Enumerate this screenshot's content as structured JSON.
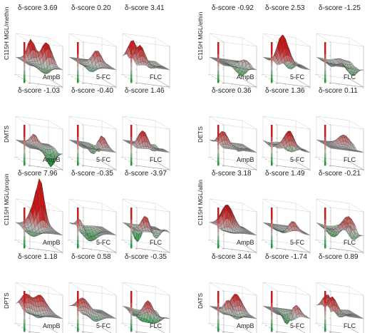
{
  "chart_data": [
    {
      "type": "surface",
      "row_label": "C115H MGL/methin",
      "panels": [
        {
          "drug": "AmpB",
          "delta_label": "δ-score",
          "delta_score": "3.69"
        },
        {
          "drug": "5-FC",
          "delta_label": "δ-score",
          "delta_score": "0.20"
        },
        {
          "drug": "FLC",
          "delta_label": "δ-score",
          "delta_score": "3.41"
        }
      ]
    },
    {
      "type": "surface",
      "row_label": "C115H MGL/ethin",
      "panels": [
        {
          "drug": "AmpB",
          "delta_label": "δ-score",
          "delta_score": "-0.92"
        },
        {
          "drug": "5-FC",
          "delta_label": "δ-score",
          "delta_score": "2.53"
        },
        {
          "drug": "FLC",
          "delta_label": "δ-score",
          "delta_score": "-1.25"
        }
      ]
    },
    {
      "type": "surface",
      "row_label": "DMTS",
      "panels": [
        {
          "drug": "AmpB",
          "delta_label": "δ-score",
          "delta_score": "-1.03"
        },
        {
          "drug": "5-FC",
          "delta_label": "δ-score",
          "delta_score": "-0.40"
        },
        {
          "drug": "FLC",
          "delta_label": "δ-score",
          "delta_score": "1.46"
        }
      ]
    },
    {
      "type": "surface",
      "row_label": "DETS",
      "panels": [
        {
          "drug": "AmpB",
          "delta_label": "δ-score",
          "delta_score": "0.36"
        },
        {
          "drug": "5-FC",
          "delta_label": "δ-score",
          "delta_score": "1.36"
        },
        {
          "drug": "FLC",
          "delta_label": "δ-score",
          "delta_score": "0.11"
        }
      ]
    },
    {
      "type": "surface",
      "row_label": "C115H MGL/propin",
      "panels": [
        {
          "drug": "AmpB",
          "delta_label": "δ-score",
          "delta_score": "7.96"
        },
        {
          "drug": "5-FC",
          "delta_label": "δ-score",
          "delta_score": "-0.35"
        },
        {
          "drug": "FLC",
          "delta_label": "δ-score",
          "delta_score": "-3.97"
        }
      ]
    },
    {
      "type": "surface",
      "row_label": "C115H MGL/allin",
      "panels": [
        {
          "drug": "AmpB",
          "delta_label": "δ-score",
          "delta_score": "3.18"
        },
        {
          "drug": "5-FC",
          "delta_label": "δ-score",
          "delta_score": "1.49"
        },
        {
          "drug": "FLC",
          "delta_label": "δ-score",
          "delta_score": "-0.21"
        }
      ]
    },
    {
      "type": "surface",
      "row_label": "DPTS",
      "panels": [
        {
          "drug": "AmpB",
          "delta_label": "δ-score",
          "delta_score": "1.18"
        },
        {
          "drug": "5-FC",
          "delta_label": "δ-score",
          "delta_score": "0.58"
        },
        {
          "drug": "FLC",
          "delta_label": "δ-score",
          "delta_score": "-0.35"
        }
      ]
    },
    {
      "type": "surface",
      "row_label": "DATS",
      "panels": [
        {
          "drug": "AmpB",
          "delta_label": "δ-score",
          "delta_score": "3.44"
        },
        {
          "drug": "5-FC",
          "delta_label": "δ-score",
          "delta_score": "-1.74"
        },
        {
          "drug": "FLC",
          "delta_label": "δ-score",
          "delta_score": "0.89"
        }
      ]
    }
  ],
  "colors": {
    "synergy": "#cc1a1a",
    "antagonism": "#1f9a3a",
    "neutral": "#bdbdbd",
    "mesh": "#222222"
  }
}
